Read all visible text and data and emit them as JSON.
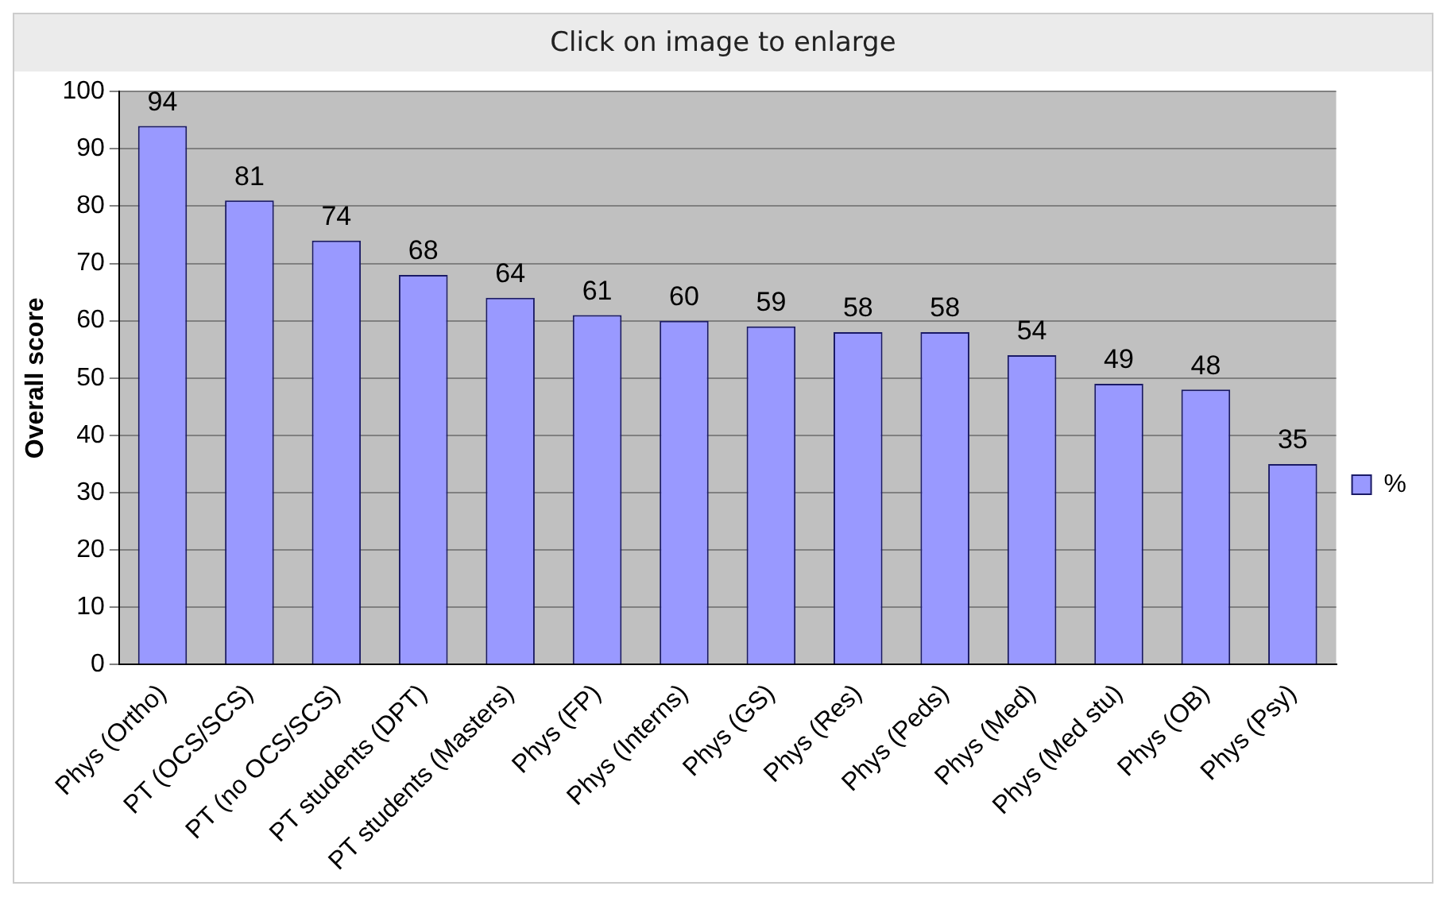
{
  "chart_data": {
    "type": "bar",
    "title": "Click on image to enlarge",
    "ylabel": "Overall score",
    "categories": [
      "Phys (Ortho)",
      "PT (OCS/SCS)",
      "PT (no OCS/SCS)",
      "PT students (DPT)",
      "PT students (Masters)",
      "Phys (FP)",
      "Phys (Interns)",
      "Phys (GS)",
      "Phys (Res)",
      "Phys (Peds)",
      "Phys (Med)",
      "Phys (Med stu)",
      "Phys (OB)",
      "Phys (Psy)"
    ],
    "series": [
      {
        "name": "%",
        "color": "#9999ff",
        "values": [
          94,
          81,
          74,
          68,
          64,
          61,
          60,
          59,
          58,
          58,
          54,
          49,
          48,
          35
        ]
      }
    ],
    "ylim": [
      0,
      100
    ],
    "yticks": [
      0,
      10,
      20,
      30,
      40,
      50,
      60,
      70,
      80,
      90,
      100
    ],
    "grid": "y",
    "legend": "right",
    "data_labels": true
  }
}
